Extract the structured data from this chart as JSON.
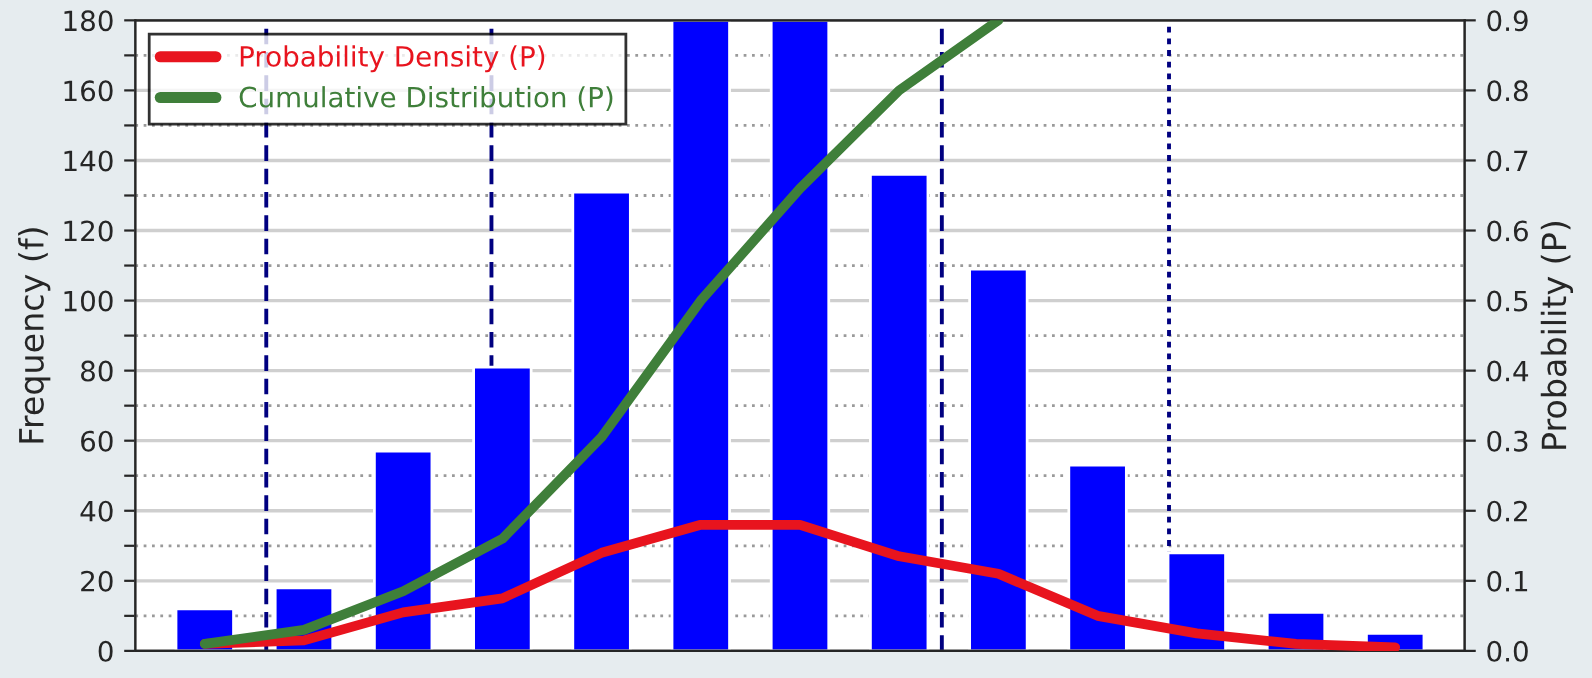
{
  "chart_data": {
    "type": "bar",
    "xlabel": null,
    "ylabel": "Frequency (f)",
    "y2label": "Probability (P)",
    "categories": [
      null,
      null,
      null,
      null,
      null,
      null,
      null,
      null,
      null,
      null,
      null,
      null,
      null
    ],
    "series": [
      {
        "color": "#0000ff",
        "values": [
          12,
          18,
          57,
          81,
          131,
          180,
          180,
          136,
          109,
          53,
          28,
          11,
          5
        ]
      },
      {
        "type": "line",
        "axis": "y2",
        "name": "Probability Density (P)",
        "color": "#e8141e",
        "values": [
          0.01,
          0.015,
          0.055,
          0.075,
          0.14,
          0.18,
          0.18,
          0.135,
          0.11,
          0.05,
          0.025,
          0.01,
          0.005
        ]
      },
      {
        "type": "line",
        "axis": "y2",
        "name": "Cumulative Distribution (P)",
        "color": "#3f7f3a",
        "values": [
          0.01,
          0.03,
          0.085,
          0.16,
          0.305,
          0.5,
          0.66,
          0.8,
          0.9,
          null,
          null,
          null,
          null
        ]
      }
    ],
    "ylim": [
      0,
      180
    ],
    "yticks": [
      0,
      {
        "value": 10,
        "label": null
      },
      20,
      {
        "value": 30,
        "label": null
      },
      40,
      {
        "value": 50,
        "label": null
      },
      60,
      {
        "value": 70,
        "label": null
      },
      80,
      {
        "value": 90,
        "label": null
      },
      100,
      {
        "value": 110,
        "label": null
      },
      120,
      {
        "value": 130,
        "label": null
      },
      140,
      {
        "value": 150,
        "label": null
      },
      160,
      {
        "value": 170,
        "label": null
      },
      180
    ],
    "y2lim": [
      0,
      0.9
    ],
    "y2ticks": [
      {
        "value": 0,
        "label": "0.0"
      },
      0.1,
      0.2,
      0.3,
      0.4,
      0.5,
      0.6,
      0.7,
      0.8,
      0.9
    ],
    "grid": "y",
    "legend": "top left"
  }
}
